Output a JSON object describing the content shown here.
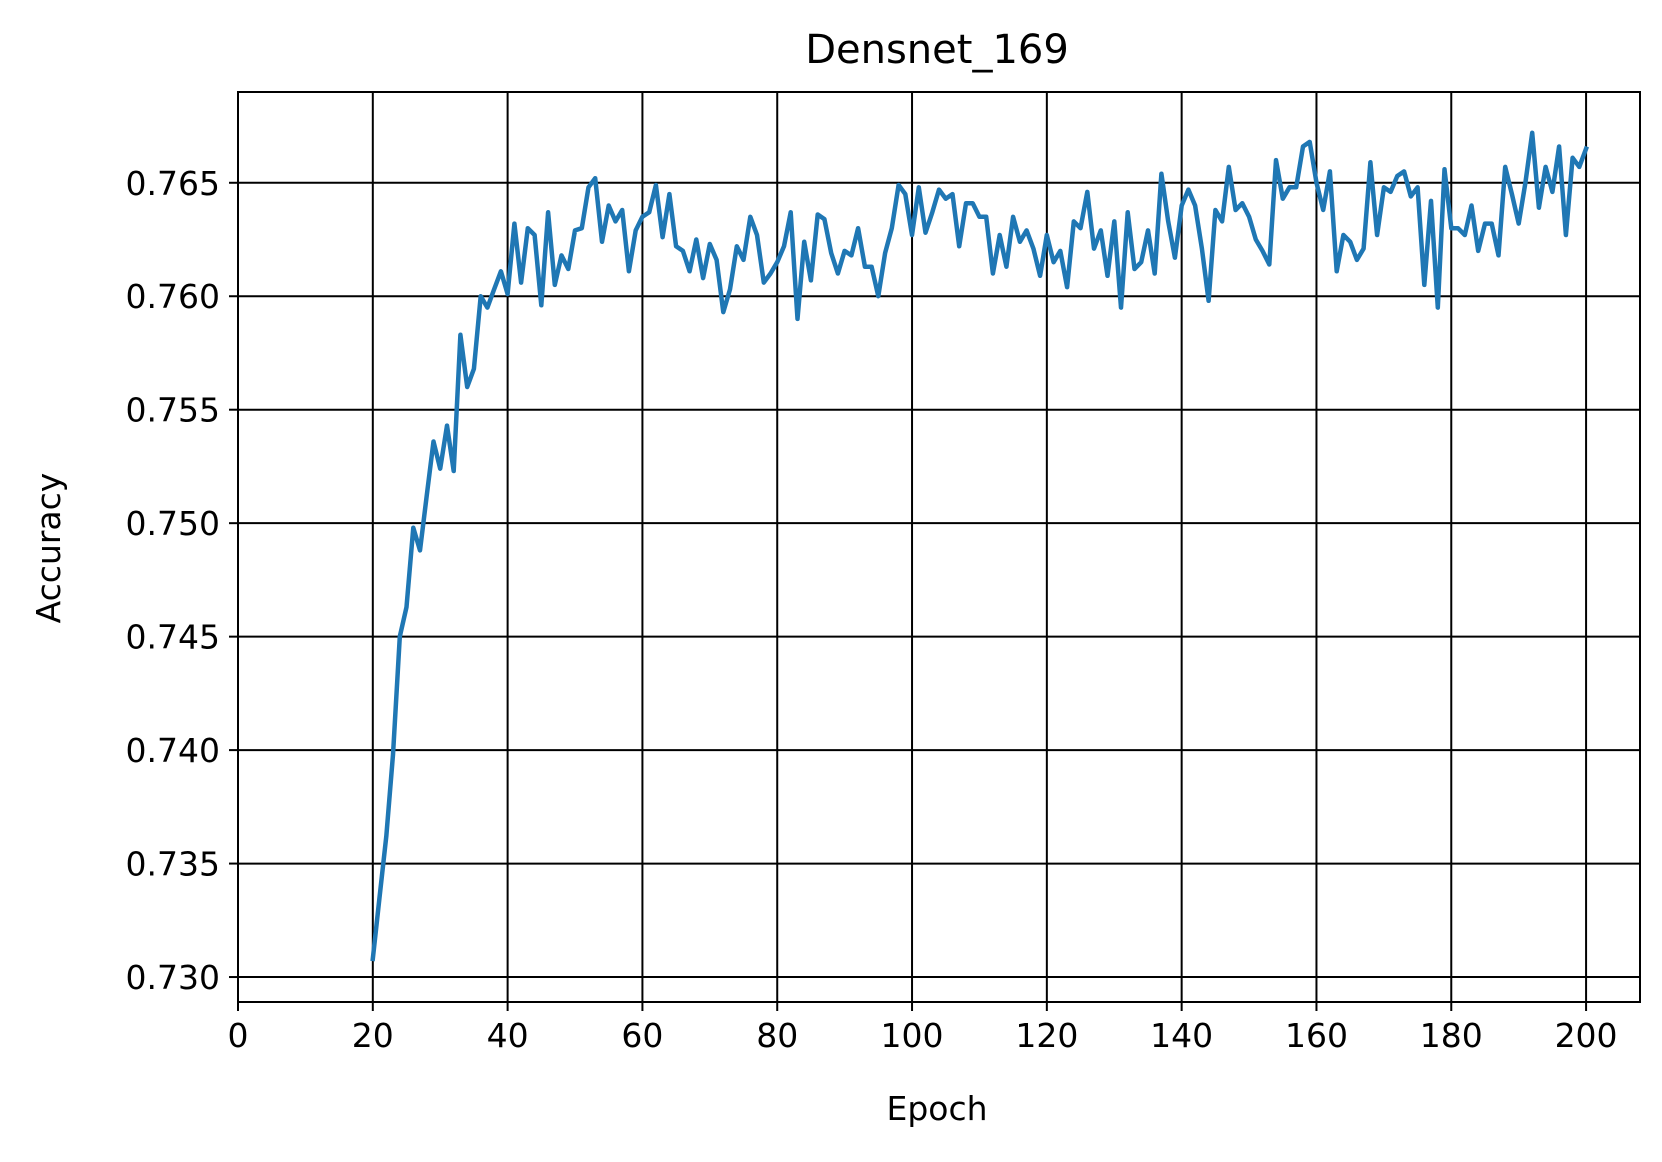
{
  "chart_data": {
    "type": "line",
    "title": "Densnet_169",
    "xlabel": "Epoch",
    "ylabel": "Accuracy",
    "xlim": [
      0,
      208
    ],
    "ylim": [
      0.7289,
      0.769
    ],
    "xticks": [
      0,
      20,
      40,
      60,
      80,
      100,
      120,
      140,
      160,
      180,
      200
    ],
    "xtick_labels": [
      "0",
      "20",
      "40",
      "60",
      "80",
      "100",
      "120",
      "140",
      "160",
      "180",
      "200"
    ],
    "yticks": [
      0.73,
      0.735,
      0.74,
      0.745,
      0.75,
      0.755,
      0.76,
      0.765
    ],
    "ytick_labels": [
      "0.730",
      "0.735",
      "0.740",
      "0.745",
      "0.750",
      "0.755",
      "0.760",
      "0.765"
    ],
    "grid": true,
    "line_color": "#1f77b4",
    "series": [
      {
        "x_start": 20,
        "x_step": 1,
        "values": [
          0.7308,
          0.7335,
          0.7362,
          0.7398,
          0.745,
          0.7463,
          0.7498,
          0.7488,
          0.7512,
          0.7536,
          0.7524,
          0.7543,
          0.7523,
          0.7583,
          0.756,
          0.7568,
          0.76,
          0.7595,
          0.7603,
          0.7611,
          0.7601,
          0.7632,
          0.7606,
          0.763,
          0.7627,
          0.7596,
          0.7637,
          0.7605,
          0.7618,
          0.7612,
          0.7629,
          0.763,
          0.7648,
          0.7652,
          0.7624,
          0.764,
          0.7633,
          0.7638,
          0.7611,
          0.7629,
          0.7635,
          0.7637,
          0.7649,
          0.7626,
          0.7645,
          0.7622,
          0.762,
          0.7611,
          0.7625,
          0.7608,
          0.7623,
          0.7616,
          0.7593,
          0.7603,
          0.7622,
          0.7616,
          0.7635,
          0.7627,
          0.7606,
          0.761,
          0.7615,
          0.7622,
          0.7637,
          0.759,
          0.7624,
          0.7607,
          0.7636,
          0.7634,
          0.7619,
          0.761,
          0.762,
          0.7618,
          0.763,
          0.7613,
          0.7613,
          0.76,
          0.7619,
          0.763,
          0.7649,
          0.7645,
          0.7627,
          0.7648,
          0.7628,
          0.7637,
          0.7647,
          0.7643,
          0.7645,
          0.7622,
          0.7641,
          0.7641,
          0.7635,
          0.7635,
          0.761,
          0.7627,
          0.7613,
          0.7635,
          0.7624,
          0.7629,
          0.7621,
          0.7609,
          0.7627,
          0.7615,
          0.762,
          0.7604,
          0.7633,
          0.763,
          0.7646,
          0.7621,
          0.7629,
          0.7609,
          0.7633,
          0.7595,
          0.7637,
          0.7612,
          0.7615,
          0.7629,
          0.761,
          0.7654,
          0.7633,
          0.7617,
          0.764,
          0.7647,
          0.764,
          0.7621,
          0.7598,
          0.7638,
          0.7633,
          0.7657,
          0.7638,
          0.7641,
          0.7635,
          0.7625,
          0.762,
          0.7614,
          0.766,
          0.7643,
          0.7648,
          0.7648,
          0.7666,
          0.7668,
          0.765,
          0.7638,
          0.7655,
          0.7611,
          0.7627,
          0.7624,
          0.7616,
          0.7621,
          0.7659,
          0.7627,
          0.7648,
          0.7646,
          0.7653,
          0.7655,
          0.7644,
          0.7648,
          0.7605,
          0.7642,
          0.7595,
          0.7656,
          0.763,
          0.763,
          0.7627,
          0.764,
          0.762,
          0.7632,
          0.7632,
          0.7618,
          0.7657,
          0.7645,
          0.7632,
          0.765,
          0.7672,
          0.7639,
          0.7657,
          0.7646,
          0.7666,
          0.7627,
          0.7661,
          0.7657,
          0.7665
        ]
      }
    ]
  }
}
